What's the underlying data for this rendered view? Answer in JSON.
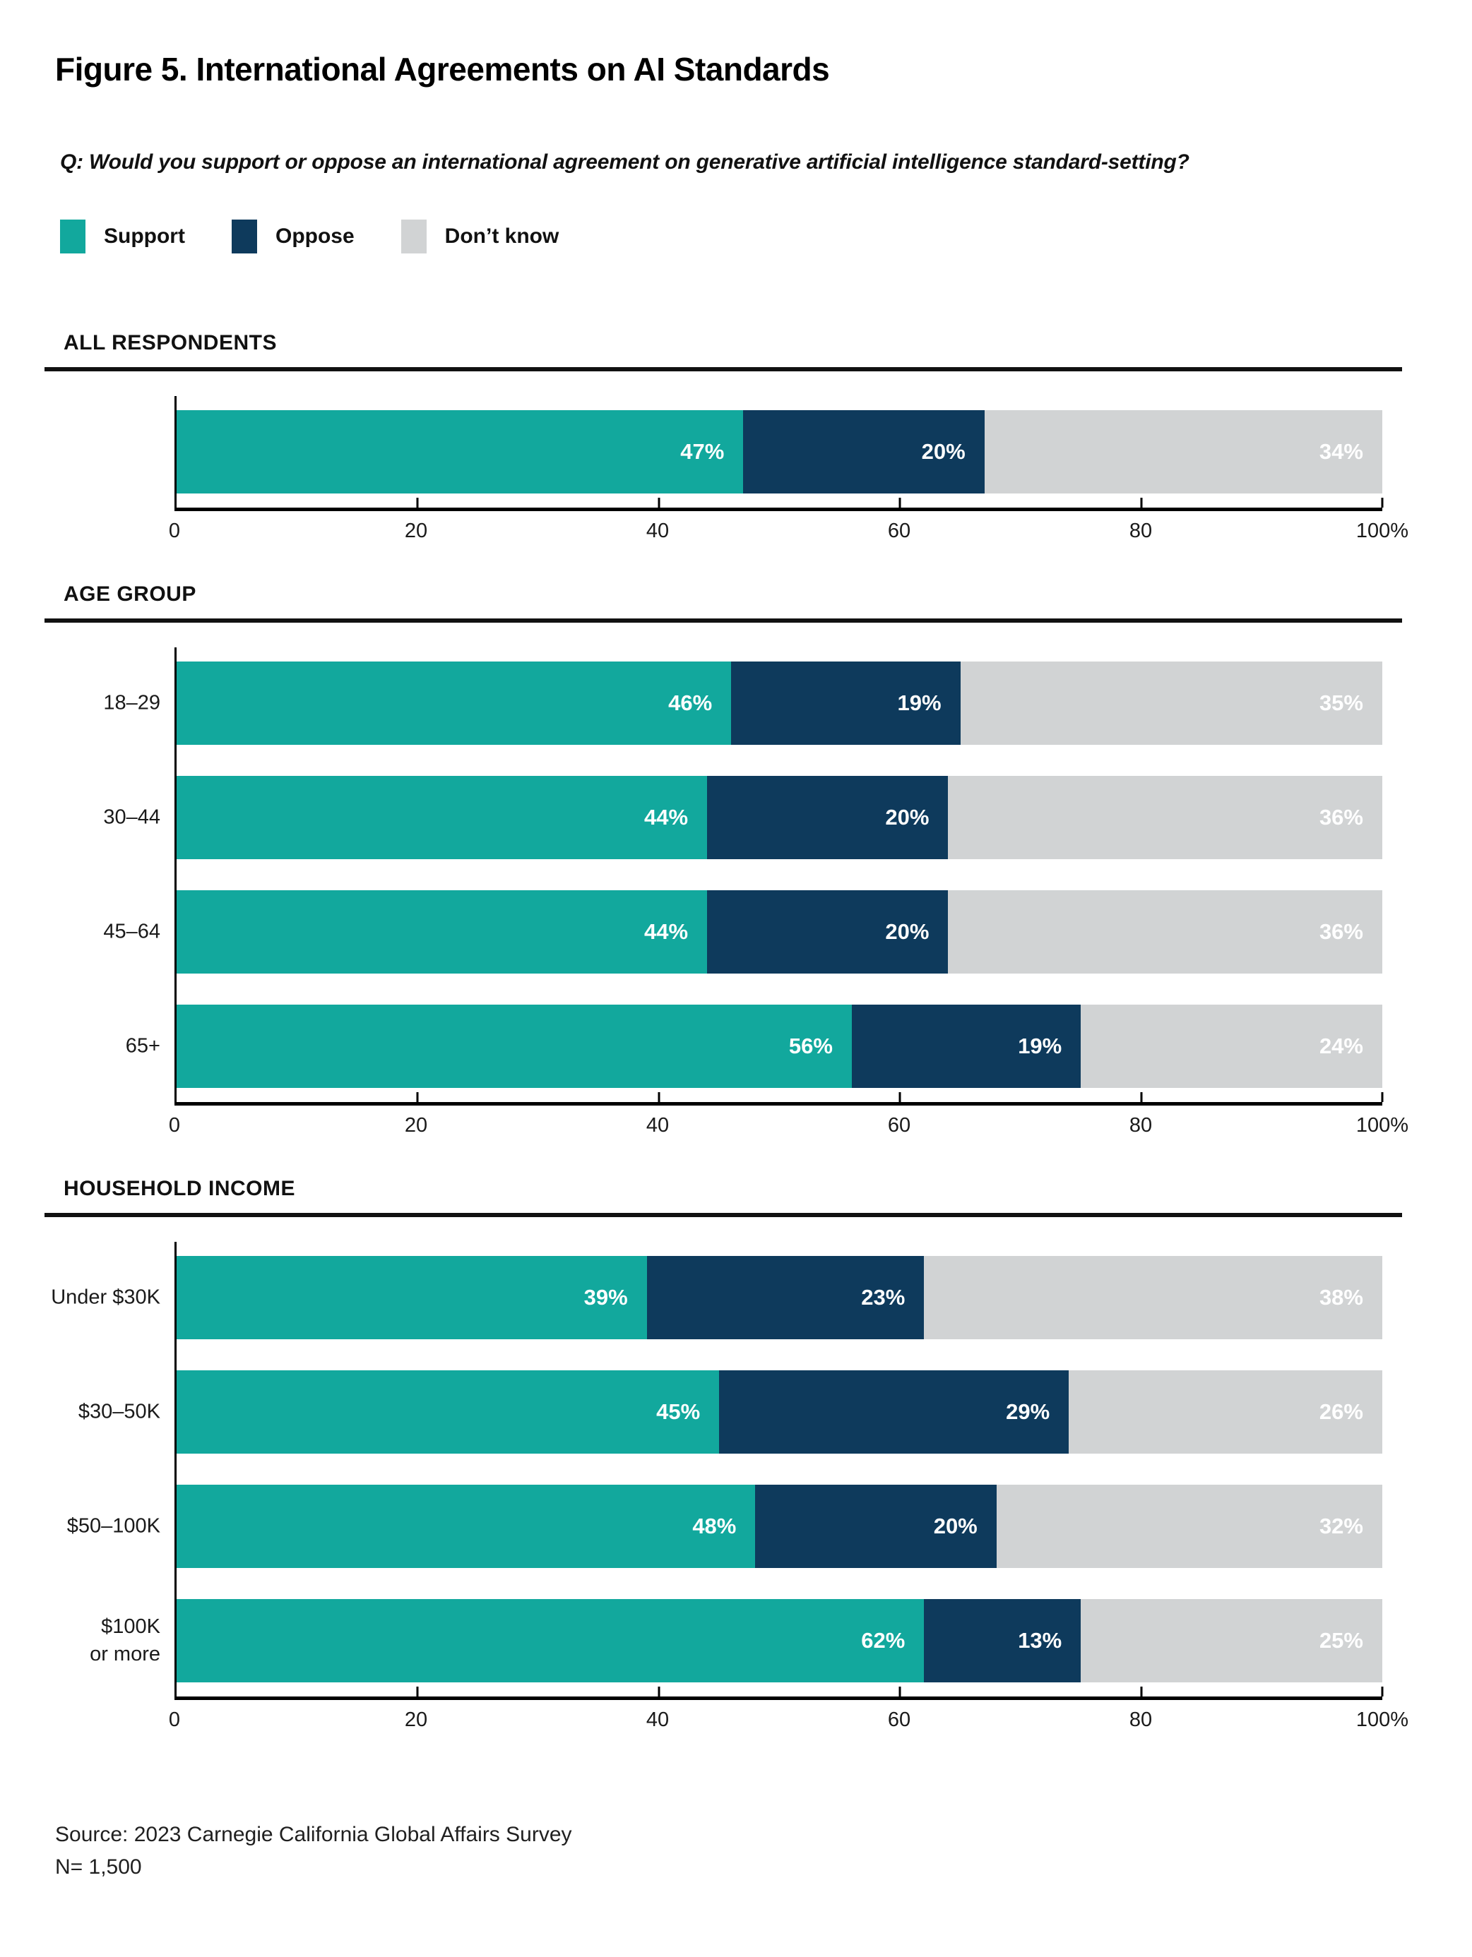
{
  "title": "Figure 5. International Agreements on AI Standards",
  "question": "Q: Would you support or oppose an international agreement on generative artificial intelligence standard-setting?",
  "legend": [
    {
      "label": "Support",
      "color": "#12A89D"
    },
    {
      "label": "Oppose",
      "color": "#0E3A5C"
    },
    {
      "label": "Don’t know",
      "color": "#D1D3D4"
    }
  ],
  "colors": {
    "support": "#12A89D",
    "oppose": "#0E3A5C",
    "dont_know": "#D1D3D4",
    "rule": "#111111",
    "axis": "#000000"
  },
  "axis": {
    "tick_values": [
      0,
      20,
      40,
      60,
      80,
      100
    ],
    "tick_labels": [
      "0",
      "20",
      "40",
      "60",
      "80",
      "100%"
    ],
    "max": 100
  },
  "chart_data": [
    {
      "type": "bar",
      "stacked": true,
      "orientation": "horizontal",
      "section": "ALL RESPONDENTS",
      "categories": [
        ""
      ],
      "series": [
        {
          "name": "Support",
          "values": [
            47
          ]
        },
        {
          "name": "Oppose",
          "values": [
            20
          ]
        },
        {
          "name": "Don’t know",
          "values": [
            34
          ]
        }
      ],
      "xlim": [
        0,
        100
      ],
      "x_ticks": [
        "0",
        "20",
        "40",
        "60",
        "80",
        "100%"
      ],
      "value_labels": "shown in white inside segments"
    },
    {
      "type": "bar",
      "stacked": true,
      "orientation": "horizontal",
      "section": "AGE GROUP",
      "categories": [
        "18–29",
        "30–44",
        "45–64",
        "65+"
      ],
      "series": [
        {
          "name": "Support",
          "values": [
            46,
            44,
            44,
            56
          ]
        },
        {
          "name": "Oppose",
          "values": [
            19,
            20,
            20,
            19
          ]
        },
        {
          "name": "Don’t know",
          "values": [
            35,
            36,
            36,
            24
          ]
        }
      ],
      "xlim": [
        0,
        100
      ],
      "x_ticks": [
        "0",
        "20",
        "40",
        "60",
        "80",
        "100%"
      ],
      "value_labels": "shown in white inside segments"
    },
    {
      "type": "bar",
      "stacked": true,
      "orientation": "horizontal",
      "section": "HOUSEHOLD INCOME",
      "categories": [
        "Under $30K",
        "$30–50K",
        "$50–100K",
        "$100K\nor more"
      ],
      "series": [
        {
          "name": "Support",
          "values": [
            39,
            45,
            48,
            62
          ]
        },
        {
          "name": "Oppose",
          "values": [
            23,
            29,
            20,
            13
          ]
        },
        {
          "name": "Don’t know",
          "values": [
            38,
            26,
            32,
            25
          ]
        }
      ],
      "xlim": [
        0,
        100
      ],
      "x_ticks": [
        "0",
        "20",
        "40",
        "60",
        "80",
        "100%"
      ],
      "value_labels": "shown in white inside segments"
    }
  ],
  "source": {
    "line1": "Source: 2023 Carnegie California Global Affairs Survey",
    "line2": "N= 1,500"
  }
}
